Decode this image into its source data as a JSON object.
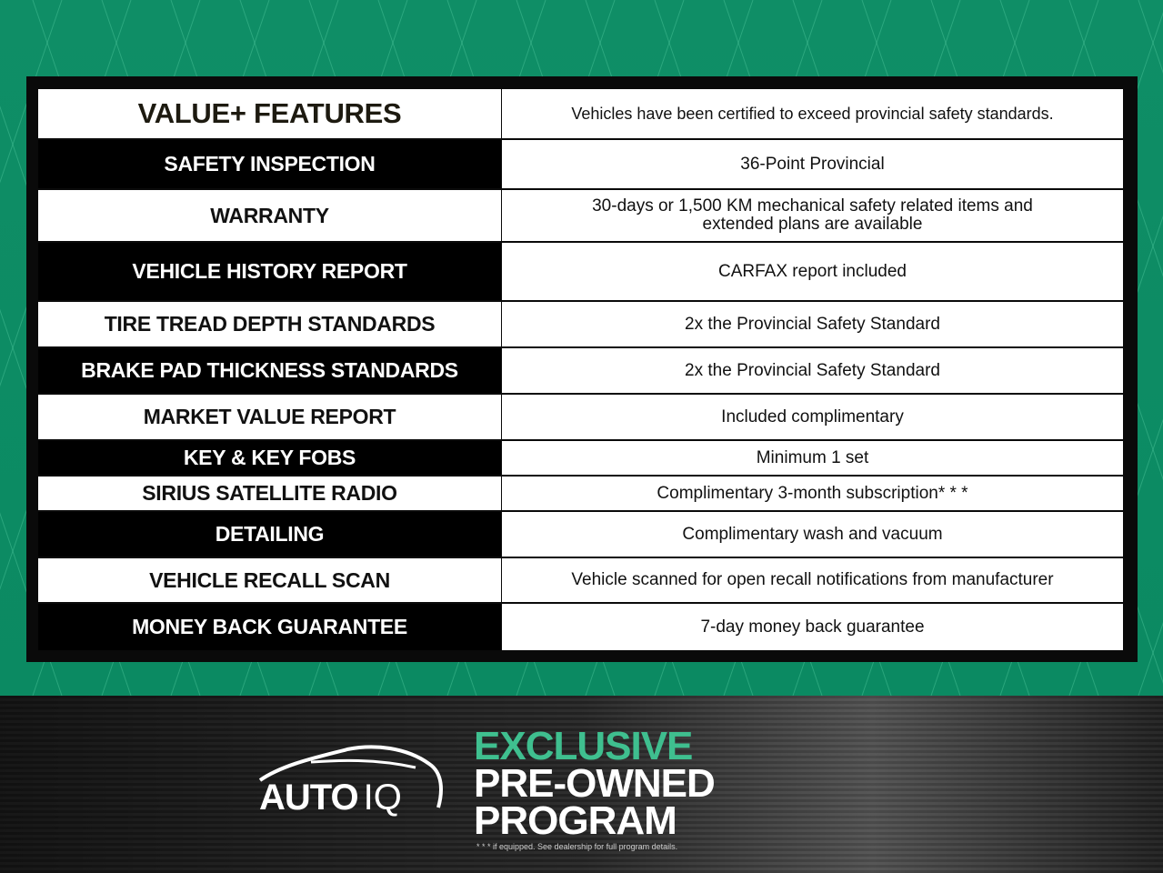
{
  "colors": {
    "background_green": "#0e8c64",
    "accent_green": "#3fbf8f",
    "frame": "#0a0a0a"
  },
  "table": {
    "title": "VALUE+ FEATURES",
    "subtitle": "Vehicles have been certified to exceed provincial safety standards.",
    "rows": [
      {
        "feature": "SAFETY INSPECTION",
        "value": "36-Point Provincial"
      },
      {
        "feature": "WARRANTY",
        "value": "30-days or 1,500 KM mechanical safety related items and extended plans are available"
      },
      {
        "feature": "VEHICLE HISTORY REPORT",
        "value": "CARFAX report included"
      },
      {
        "feature": "TIRE TREAD DEPTH STANDARDS",
        "value": "2x the Provincial Safety Standard"
      },
      {
        "feature": "BRAKE PAD  THICKNESS STANDARDS",
        "value": "2x the Provincial Safety Standard"
      },
      {
        "feature": "MARKET VALUE REPORT",
        "value": "Included complimentary"
      },
      {
        "feature": "KEY & KEY FOBS",
        "value": "Minimum 1 set"
      },
      {
        "feature": "SIRIUS SATELLITE RADIO",
        "value": "Complimentary 3-month subscription* * *"
      },
      {
        "feature": "DETAILING",
        "value": "Complimentary wash and vacuum"
      },
      {
        "feature": "VEHICLE RECALL SCAN",
        "value": "Vehicle scanned for open recall notifications from manufacturer"
      },
      {
        "feature": "MONEY BACK GUARANTEE",
        "value": "7-day money back guarantee"
      }
    ]
  },
  "footer": {
    "logo": "AUTO IQ",
    "logo_auto": "AUTO",
    "logo_iq": "IQ",
    "line1": "EXCLUSIVE",
    "line2": "PRE-OWNED",
    "line3": "PROGRAM",
    "fine_print": "* * * if equipped. See dealership for full program details."
  }
}
